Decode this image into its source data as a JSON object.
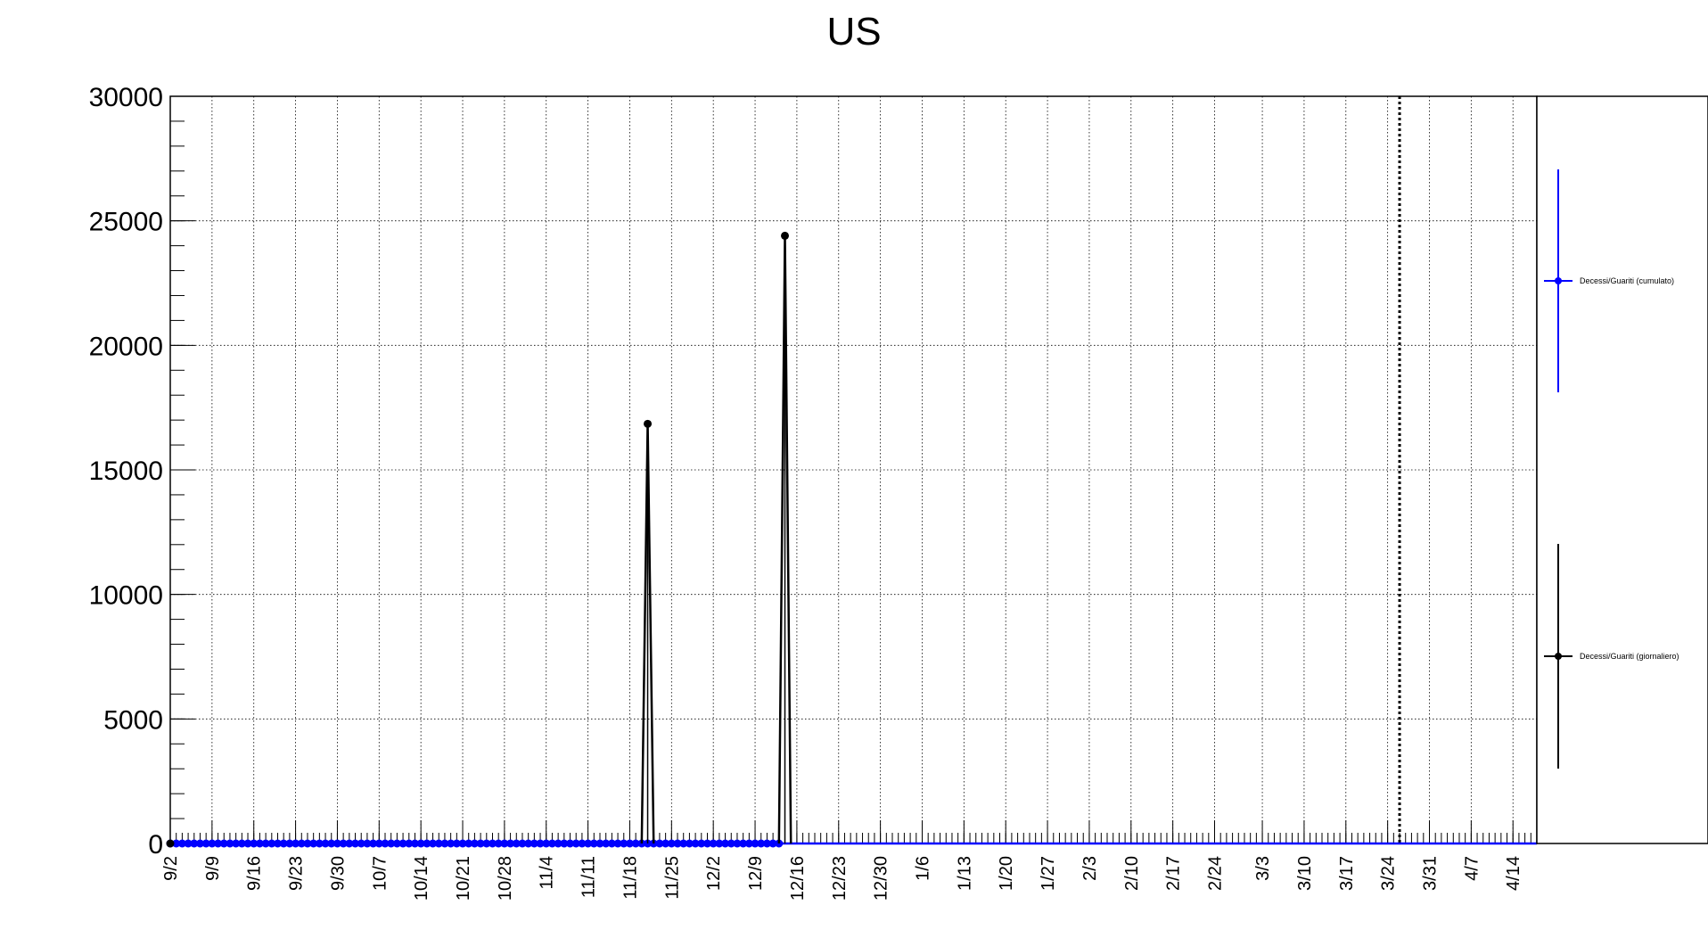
{
  "chart_data": {
    "type": "line",
    "title": "US",
    "xlabel": "",
    "ylabel": "",
    "ylim": [
      0,
      30000
    ],
    "yticks": [
      0,
      5000,
      10000,
      15000,
      20000,
      25000,
      30000
    ],
    "x_start": "9/2",
    "x_end": "4/18",
    "xticks": [
      "9/2",
      "9/9",
      "9/16",
      "9/23",
      "9/30",
      "10/7",
      "10/14",
      "10/21",
      "10/28",
      "11/4",
      "11/11",
      "11/18",
      "11/25",
      "12/2",
      "12/9",
      "12/16",
      "12/23",
      "12/30",
      "1/6",
      "1/13",
      "1/20",
      "1/27",
      "2/3",
      "2/10",
      "2/17",
      "2/24",
      "3/3",
      "3/10",
      "3/17",
      "3/24",
      "3/31",
      "4/7",
      "4/14"
    ],
    "grid": true,
    "legend_position": "right",
    "marker_line": "3/26",
    "series": [
      {
        "name": "Decessi/Guariti (cumulato)",
        "color": "#0000ff",
        "marker": "circle",
        "points": [
          {
            "from": "9/2",
            "to": "12/13",
            "value": 0
          }
        ],
        "line": [
          {
            "from": "12/13",
            "to": "4/18",
            "value": 0
          }
        ]
      },
      {
        "name": "Decessi/Guariti (giornaliero)",
        "color": "#000000",
        "marker": "circle",
        "points": [
          {
            "date": "9/2",
            "value": 0
          },
          {
            "date": "11/21",
            "value": 16850
          },
          {
            "date": "12/14",
            "value": 24400
          }
        ],
        "spikes": [
          {
            "date": "11/21",
            "value": 16850,
            "from": "11/20",
            "to": "11/22"
          },
          {
            "date": "12/14",
            "value": 24400,
            "from": "12/13",
            "to": "12/15"
          }
        ]
      }
    ]
  }
}
